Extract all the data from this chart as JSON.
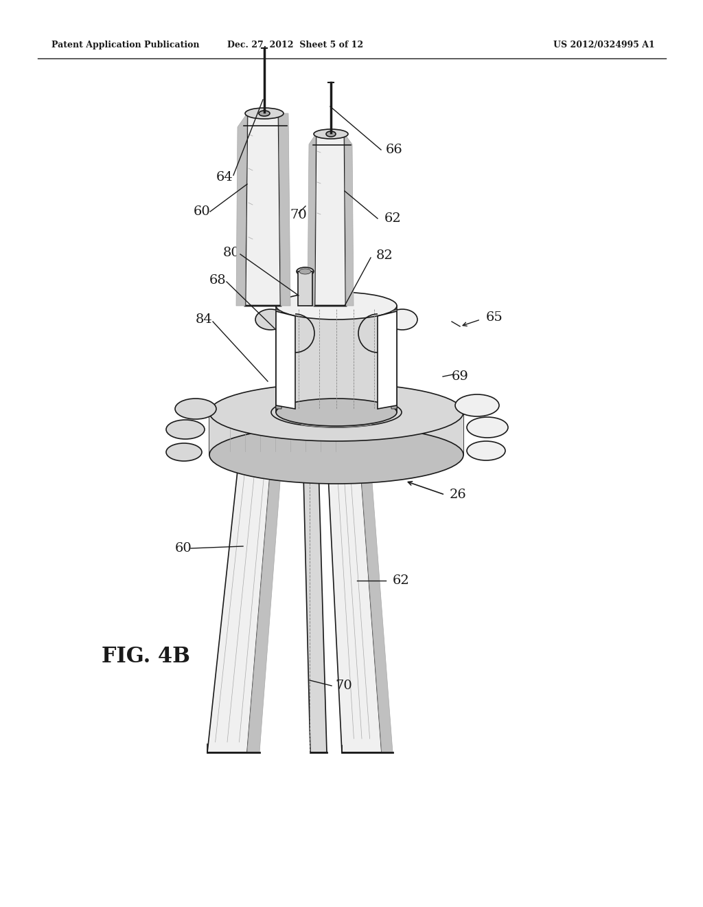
{
  "bg_color": "#ffffff",
  "line_color": "#1a1a1a",
  "header_left": "Patent Application Publication",
  "header_mid": "Dec. 27, 2012  Sheet 5 of 12",
  "header_right": "US 2012/0324995 A1",
  "figure_label": "FIG. 4B",
  "gray1": "#f0f0f0",
  "gray2": "#d8d8d8",
  "gray3": "#c0c0c0",
  "gray4": "#a8a8a8",
  "gray5": "#888888",
  "gray6": "#606060"
}
